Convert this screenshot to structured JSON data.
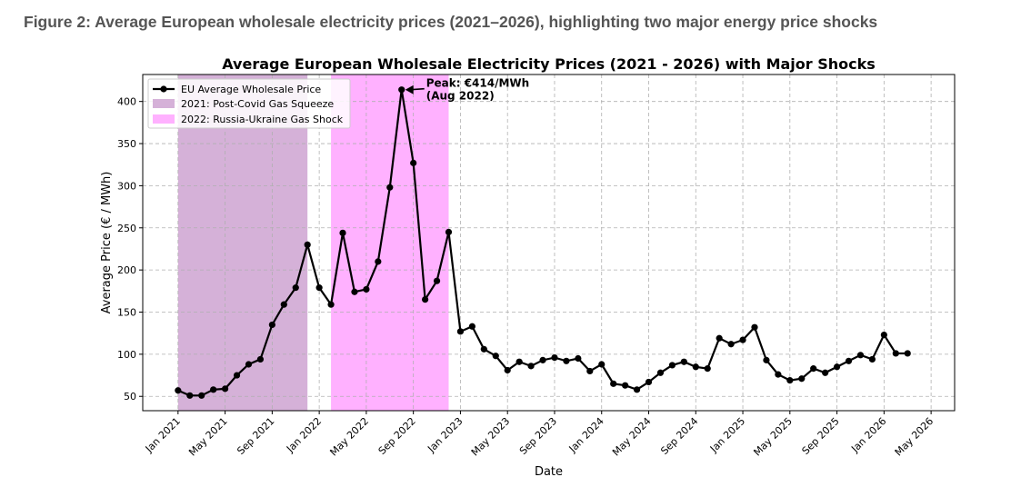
{
  "figure_caption": "Figure 2: Average European wholesale electricity prices (2021–2026), highlighting two major energy price shocks",
  "chart_data": {
    "type": "line",
    "title": "Average European Wholesale Electricity Prices (2021 - 2026) with Major Shocks",
    "xlabel": "Date",
    "ylabel": "Average Price (€ / MWh)",
    "xlim": [
      "2020-10",
      "2026-07"
    ],
    "ylim": [
      33,
      432
    ],
    "grid": true,
    "legend_position": "top-left",
    "x_ticks": [
      "2021-01",
      "2021-05",
      "2021-09",
      "2022-01",
      "2022-05",
      "2022-09",
      "2023-01",
      "2023-05",
      "2023-09",
      "2024-01",
      "2024-05",
      "2024-09",
      "2025-01",
      "2025-05",
      "2025-09",
      "2026-01",
      "2026-05"
    ],
    "x_tick_labels": [
      "Jan 2021",
      "May 2021",
      "Sep 2021",
      "Jan 2022",
      "May 2022",
      "Sep 2022",
      "Jan 2023",
      "May 2023",
      "Sep 2023",
      "Jan 2024",
      "May 2024",
      "Sep 2024",
      "Jan 2025",
      "May 2025",
      "Sep 2025",
      "Jan 2026",
      "May 2026"
    ],
    "y_ticks": [
      50,
      100,
      150,
      200,
      250,
      300,
      350,
      400
    ],
    "shaded_regions": [
      {
        "label": "2021: Post-Covid Gas Squeeze",
        "start": "2021-01",
        "end": "2021-12",
        "color": "#d5b1d8"
      },
      {
        "label": "2022: Russia-Ukraine Gas Shock",
        "start": "2022-02",
        "end": "2022-12",
        "color": "#ffb1ff"
      }
    ],
    "series": [
      {
        "name": "EU Average Wholesale Price",
        "color": "#000000",
        "x": [
          "2021-01",
          "2021-02",
          "2021-03",
          "2021-04",
          "2021-05",
          "2021-06",
          "2021-07",
          "2021-08",
          "2021-09",
          "2021-10",
          "2021-11",
          "2021-12",
          "2022-01",
          "2022-02",
          "2022-03",
          "2022-04",
          "2022-05",
          "2022-06",
          "2022-07",
          "2022-08",
          "2022-09",
          "2022-10",
          "2022-11",
          "2022-12",
          "2023-01",
          "2023-02",
          "2023-03",
          "2023-04",
          "2023-05",
          "2023-06",
          "2023-07",
          "2023-08",
          "2023-09",
          "2023-10",
          "2023-11",
          "2023-12",
          "2024-01",
          "2024-02",
          "2024-03",
          "2024-04",
          "2024-05",
          "2024-06",
          "2024-07",
          "2024-08",
          "2024-09",
          "2024-10",
          "2024-11",
          "2024-12",
          "2025-01",
          "2025-02",
          "2025-03",
          "2025-04",
          "2025-05",
          "2025-06",
          "2025-07",
          "2025-08",
          "2025-09",
          "2025-10",
          "2025-11",
          "2025-12",
          "2026-01",
          "2026-02",
          "2026-03"
        ],
        "y": [
          57,
          51,
          51,
          58,
          59,
          75,
          88,
          94,
          135,
          159,
          179,
          230,
          179,
          159,
          244,
          174,
          177,
          210,
          298,
          414,
          327,
          165,
          187,
          245,
          127,
          133,
          106,
          98,
          81,
          91,
          86,
          93,
          96,
          92,
          95,
          80,
          88,
          65,
          63,
          58,
          67,
          78,
          87,
          91,
          85,
          83,
          119,
          112,
          117,
          132,
          93,
          76,
          69,
          71,
          83,
          78,
          85,
          92,
          99,
          94,
          123,
          101,
          101
        ]
      }
    ],
    "annotation": {
      "text_line1": "Peak: €414/MWh",
      "text_line2": "(Aug 2022)",
      "x": "2022-08",
      "y": 414
    }
  }
}
